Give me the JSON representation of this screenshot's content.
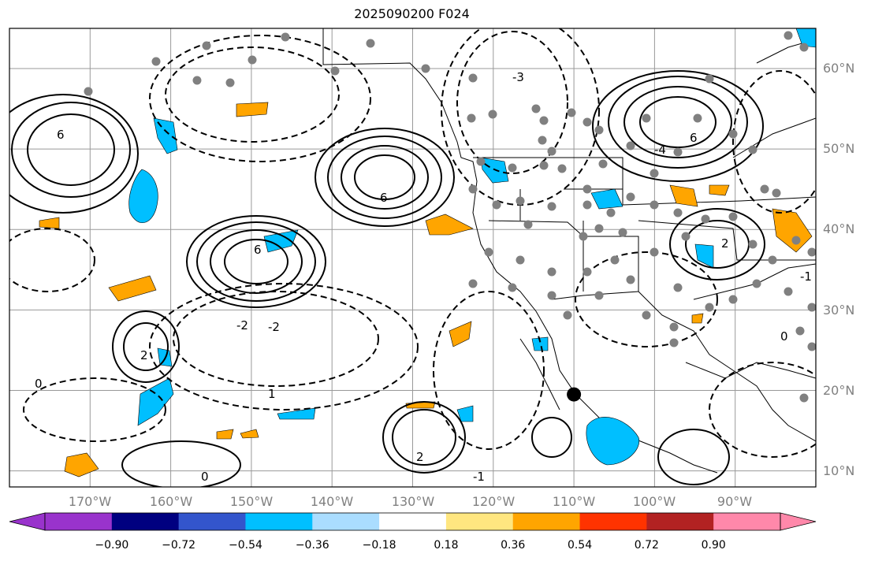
{
  "title": "2025090200 F024",
  "map": {
    "lon_range": [
      -180,
      -80
    ],
    "lat_range": [
      8,
      65
    ],
    "lon_ticks": [
      "170°W",
      "160°W",
      "150°W",
      "140°W",
      "130°W",
      "120°W",
      "110°W",
      "100°W",
      "90°W"
    ],
    "lat_ticks": [
      "10°N",
      "20°N",
      "30°N",
      "40°N",
      "50°N",
      "60°N"
    ],
    "contour_labels": [
      "6",
      "6",
      "6",
      "6",
      "2",
      "2",
      "2",
      "1",
      "0",
      "0",
      "-1",
      "-2",
      "-3",
      "-4",
      "-2",
      "-1",
      "0"
    ],
    "marker": {
      "lon": -110,
      "lat": 19.5,
      "color": "#000000"
    }
  },
  "colorbar": {
    "colors": [
      "#9933cc",
      "#000080",
      "#3355cc",
      "#00bfff",
      "#aaddff",
      "#ffffff",
      "#ffe680",
      "#ffa500",
      "#ff3300",
      "#b22222",
      "#ff88aa"
    ],
    "labels": [
      "−0.90",
      "−0.72",
      "−0.54",
      "−0.36",
      "−0.18",
      "0.18",
      "0.36",
      "0.54",
      "0.72",
      "0.90"
    ]
  }
}
